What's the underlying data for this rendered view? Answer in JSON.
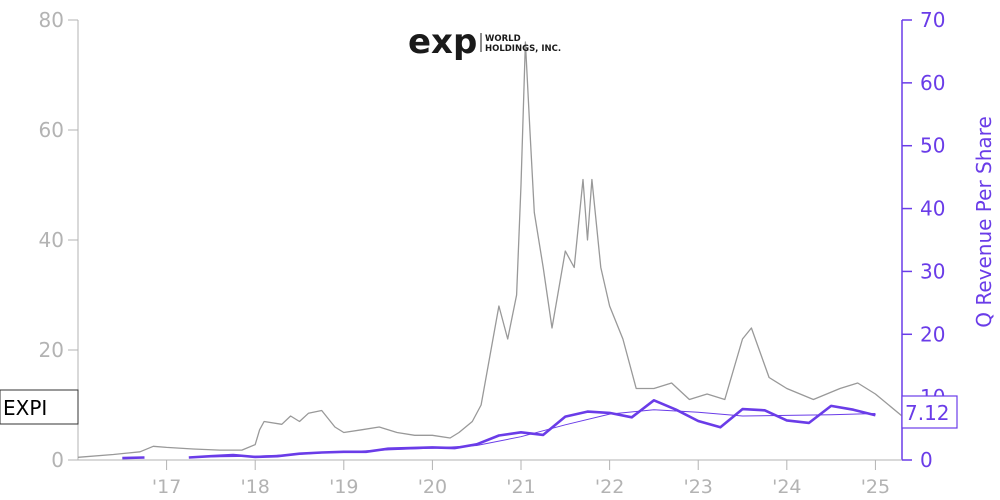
{
  "logo": {
    "mark": "exp",
    "line1": "WORLD",
    "line2": "HOLDINGS, INC."
  },
  "ticker_label": "EXPI",
  "last_value_label": "7.12",
  "colors": {
    "price": "#999999",
    "revenue": "#6a3ce8",
    "axis_left": "#b3b3b3"
  },
  "chart_data": {
    "type": "line",
    "x_ticks": [
      "'17",
      "'18",
      "'19",
      "'20",
      "'21",
      "'22",
      "'23",
      "'24",
      "'25"
    ],
    "y_left": {
      "ticks": [
        0,
        20,
        40,
        60,
        80
      ],
      "range": [
        0,
        80
      ]
    },
    "y_right": {
      "label": "Q Revenue Per Share",
      "ticks": [
        0,
        10,
        20,
        30,
        40,
        50,
        60,
        70
      ],
      "range": [
        0,
        70
      ]
    },
    "series": [
      {
        "axis": "left",
        "x": [
          2016.0,
          2016.4,
          2016.7,
          2016.85,
          2017.0,
          2017.3,
          2017.6,
          2017.85,
          2018.0,
          2018.05,
          2018.1,
          2018.3,
          2018.4,
          2018.5,
          2018.6,
          2018.75,
          2018.9,
          2019.0,
          2019.2,
          2019.4,
          2019.6,
          2019.8,
          2020.0,
          2020.2,
          2020.3,
          2020.45,
          2020.55,
          2020.65,
          2020.75,
          2020.85,
          2020.95,
          2021.0,
          2021.05,
          2021.1,
          2021.15,
          2021.25,
          2021.35,
          2021.5,
          2021.6,
          2021.7,
          2021.75,
          2021.8,
          2021.9,
          2022.0,
          2022.15,
          2022.3,
          2022.5,
          2022.7,
          2022.9,
          2023.1,
          2023.3,
          2023.5,
          2023.6,
          2023.8,
          2024.0,
          2024.3,
          2024.6,
          2024.8,
          2025.0,
          2025.3
        ],
        "y": [
          0.5,
          1.0,
          1.5,
          2.5,
          2.3,
          2.0,
          1.8,
          1.8,
          2.8,
          5.5,
          7.0,
          6.5,
          8.0,
          7.0,
          8.5,
          9.0,
          6.0,
          5.0,
          5.5,
          6.0,
          5.0,
          4.5,
          4.5,
          4.0,
          5.0,
          7.0,
          10.0,
          19.0,
          28.0,
          22.0,
          30.0,
          50.0,
          76.0,
          60.0,
          45.0,
          35.0,
          24.0,
          38.0,
          35.0,
          51.0,
          40.0,
          51.0,
          35.0,
          28.0,
          22.0,
          13.0,
          13.0,
          14.0,
          11.0,
          12.0,
          11.0,
          22.0,
          24.0,
          15.0,
          13.0,
          11.0,
          13.0,
          14.0,
          12.0,
          8.0
        ]
      },
      {
        "axis": "right",
        "x": [
          2016.5,
          2016.75,
          2017.25,
          2017.5,
          2017.75,
          2018.0,
          2018.25,
          2018.5,
          2018.75,
          2019.0,
          2019.25,
          2019.5,
          2019.75,
          2020.0,
          2020.25,
          2020.5,
          2020.75,
          2021.0,
          2021.25,
          2021.5,
          2021.75,
          2022.0,
          2022.25,
          2022.5,
          2022.75,
          2023.0,
          2023.25,
          2023.5,
          2023.75,
          2024.0,
          2024.25,
          2024.5,
          2024.75,
          2025.0
        ],
        "y": [
          0.3,
          0.4,
          0.4,
          0.6,
          0.8,
          0.5,
          0.6,
          1.0,
          1.2,
          1.3,
          1.3,
          1.8,
          1.9,
          2.0,
          1.9,
          2.5,
          3.9,
          4.4,
          4.0,
          6.9,
          7.7,
          7.5,
          6.8,
          9.5,
          8.0,
          6.2,
          5.2,
          8.1,
          7.9,
          6.3,
          5.9,
          8.6,
          8.0,
          7.12
        ]
      },
      {
        "axis": "right",
        "x": [
          2017.5,
          2018.0,
          2018.5,
          2019.0,
          2019.5,
          2020.0,
          2020.5,
          2021.0,
          2021.5,
          2022.0,
          2022.5,
          2023.0,
          2023.5,
          2024.0,
          2024.5,
          2025.0
        ],
        "y": [
          0.5,
          0.6,
          0.9,
          1.3,
          1.6,
          1.9,
          2.3,
          3.7,
          5.6,
          7.3,
          8.0,
          7.6,
          7.0,
          7.1,
          7.2,
          7.4
        ]
      }
    ]
  }
}
